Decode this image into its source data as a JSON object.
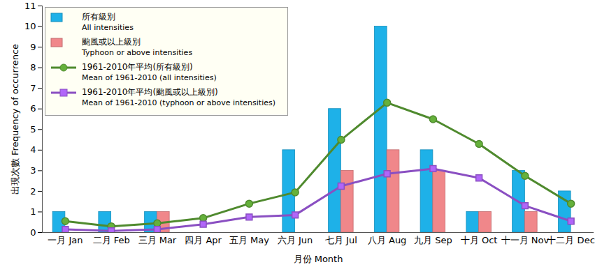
{
  "chart_data": {
    "type": "bar",
    "categories": [
      "一月 Jan",
      "二月 Feb",
      "三月 Mar",
      "四月 Apr",
      "五月 May",
      "六月 Jun",
      "七月 Jul",
      "八月 Aug",
      "九月 Sep",
      "十月 Oct",
      "十一月 Nov",
      "十二月 Dec"
    ],
    "series": [
      {
        "name": "所有級別\nAll intensities",
        "type": "bar",
        "color": "#1eb1e8",
        "values": [
          1,
          1,
          1,
          0,
          0,
          4,
          6,
          10,
          4,
          1,
          3,
          2
        ]
      },
      {
        "name": "颱風或以上級別\nTyphoon or above intensities",
        "type": "bar",
        "color": "#f0878a",
        "values": [
          0,
          0,
          1,
          0,
          0,
          0,
          3,
          4,
          3,
          1,
          1,
          0
        ]
      },
      {
        "name": "1961-2010年平均(所有級別)\nMean of 1961-2010 (all intensities)",
        "type": "line",
        "color": "#4f8a2e",
        "marker": "circle",
        "values": [
          0.55,
          0.3,
          0.45,
          0.7,
          1.4,
          1.95,
          4.5,
          6.3,
          5.5,
          4.3,
          2.75,
          1.4
        ]
      },
      {
        "name": "1961-2010年平均(颱風或以上級別)\nMean of 1961-2010 (typhoon or above intensities)",
        "type": "line",
        "color": "#8a4fc2",
        "marker": "square",
        "values": [
          0.15,
          0.08,
          0.15,
          0.4,
          0.75,
          0.85,
          2.25,
          2.85,
          3.1,
          2.65,
          1.3,
          0.55
        ]
      }
    ],
    "x_label": "月份 Month",
    "y_label": "出現次數 Frequency of occurrence",
    "ylim": [
      0,
      11
    ],
    "yticks": [
      0,
      1,
      2,
      3,
      4,
      5,
      6,
      7,
      8,
      9,
      10,
      11
    ],
    "grid": false,
    "legend": "top-left"
  }
}
